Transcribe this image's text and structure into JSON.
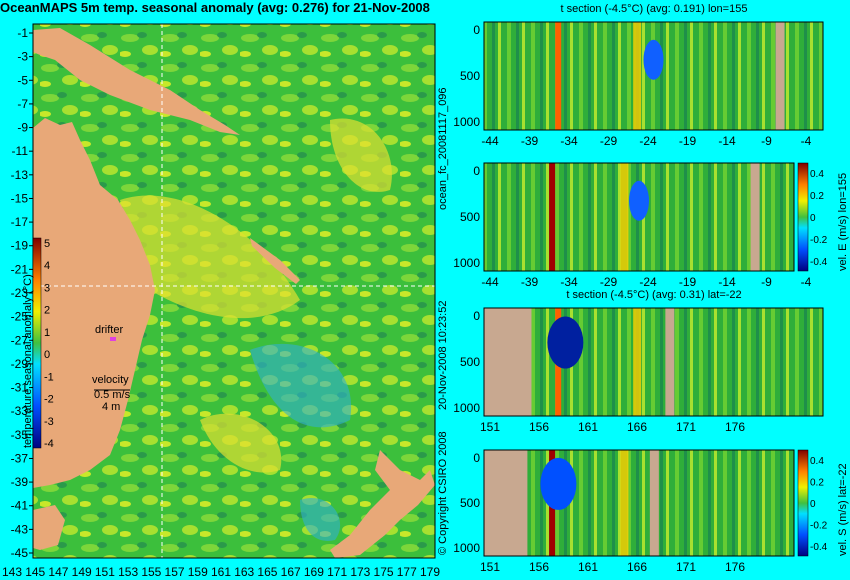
{
  "map": {
    "title": "OceanMAPS 5m temp. seasonal anomaly (avg: 0.276) for 21-Nov-2008",
    "lat_ticks": [
      "-1",
      "-3",
      "-5",
      "-7",
      "-9",
      "-11",
      "-13",
      "-15",
      "-17",
      "-19",
      "-21",
      "-23",
      "-25",
      "-27",
      "-29",
      "-31",
      "-33",
      "-35",
      "-37",
      "-39",
      "-41",
      "-43",
      "-45"
    ],
    "lon_ticks": [
      "143",
      "145",
      "147",
      "149",
      "151",
      "153",
      "155",
      "157",
      "159",
      "161",
      "163",
      "165",
      "167",
      "169",
      "171",
      "173",
      "175",
      "177",
      "179"
    ],
    "colorbar_label": "temperature seasonal anomaly (°C)",
    "colorbar_ticks": [
      "5",
      "4",
      "3",
      "2",
      "1",
      "0",
      "-1",
      "-2",
      "-3",
      "-4"
    ],
    "drifter_label": "drifter",
    "velocity_label": "velocity",
    "velocity_value": "0.5 m/s",
    "velocity_angle": "4 m"
  },
  "side_labels": {
    "forecast_id": "ocean_fc_20081117_096",
    "timestamp": "20-Nov-2008 10:23:52",
    "copyright": "© Copyright CSIRO 2008"
  },
  "chart_data": [
    {
      "type": "heatmap",
      "title": "t section (-4.5°C) (avg: 0.191) lon=155",
      "x_ticks": [
        "-44",
        "-39",
        "-34",
        "-29",
        "-24",
        "-19",
        "-14",
        "-9",
        "-4"
      ],
      "y_ticks": [
        "0",
        "500",
        "1000"
      ],
      "x_range": [
        -45,
        0
      ],
      "y_range": [
        0,
        1050
      ]
    },
    {
      "type": "heatmap",
      "title": "",
      "x_ticks": [
        "-44",
        "-39",
        "-34",
        "-29",
        "-24",
        "-19",
        "-14",
        "-9",
        "-4"
      ],
      "y_ticks": [
        "0",
        "500",
        "1000"
      ],
      "colorbar_label": "vel. E (m/s) lon=155",
      "colorbar_ticks": [
        "0.4",
        "0.2",
        "0",
        "-0.2",
        "-0.4"
      ]
    },
    {
      "type": "heatmap",
      "title": "t section (-4.5°C) (avg: 0.31) lat=-22",
      "x_ticks": [
        "151",
        "156",
        "161",
        "166",
        "171",
        "176"
      ],
      "y_ticks": [
        "0",
        "500",
        "1000"
      ],
      "x_range": [
        150,
        180
      ],
      "y_range": [
        0,
        1050
      ]
    },
    {
      "type": "heatmap",
      "title": "",
      "x_ticks": [
        "151",
        "156",
        "161",
        "166",
        "171",
        "176"
      ],
      "y_ticks": [
        "0",
        "500",
        "1000"
      ],
      "colorbar_label": "vel. S (m/s) lat=-22",
      "colorbar_ticks": [
        "0.4",
        "0.2",
        "0",
        "-0.2",
        "-0.4"
      ]
    }
  ]
}
